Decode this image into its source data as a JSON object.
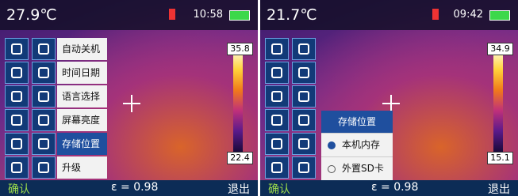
{
  "screens": [
    {
      "temperature": "27.9℃",
      "time": "10:58",
      "scale": {
        "max": "35.8",
        "min": "22.4"
      },
      "menu": [
        "自动关机",
        "时间日期",
        "语言选择",
        "屏幕亮度",
        "存储位置",
        "升级"
      ],
      "bottom": {
        "confirm": "确认",
        "emissivity": "ε = 0.98",
        "exit": "退出"
      }
    },
    {
      "temperature": "21.7℃",
      "time": "09:42",
      "scale": {
        "max": "34.9",
        "min": "15.1"
      },
      "storage_menu": {
        "title": "存储位置",
        "options": [
          "本机内存",
          "外置SD卡"
        ]
      },
      "bottom": {
        "confirm": "确认",
        "emissivity": "ε = 0.98",
        "exit": "退出"
      }
    }
  ]
}
